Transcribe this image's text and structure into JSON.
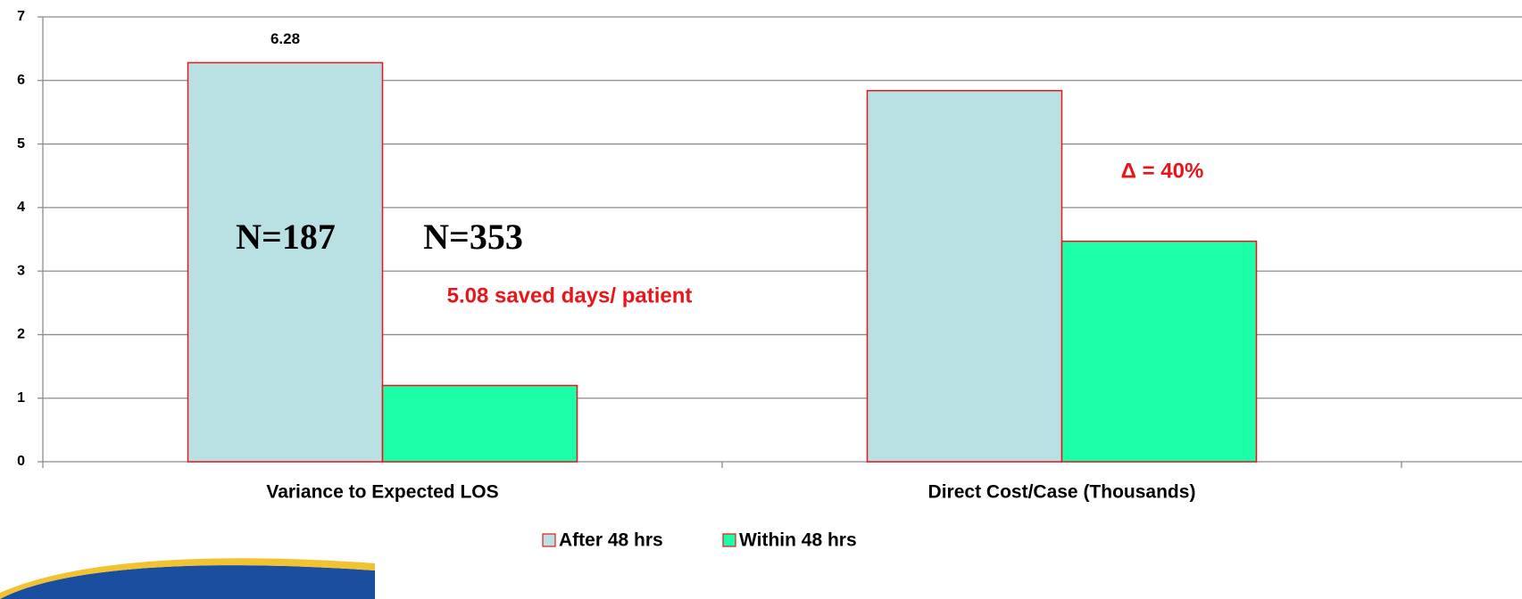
{
  "chart_data": {
    "type": "bar",
    "categories": [
      "Variance to Expected LOS",
      "Direct Cost/Case (Thousands)"
    ],
    "series": [
      {
        "name": "After 48 hrs",
        "color": "#b9e0e3",
        "values": [
          6.28,
          5.84
        ],
        "value_labels": [
          "6.28",
          null
        ]
      },
      {
        "name": "Within 48 hrs",
        "color": "#1cffa8",
        "values": [
          1.2,
          3.47
        ]
      }
    ],
    "bar_edge_color": "#e8161b",
    "ylim": [
      0,
      7
    ],
    "yticks": [
      0,
      1,
      2,
      3,
      4,
      5,
      6,
      7
    ],
    "grid": true,
    "legend": "bottom",
    "annotations": [
      "N=187",
      "N=353",
      "5.08 saved days/ patient",
      "Δ = 40%"
    ]
  }
}
